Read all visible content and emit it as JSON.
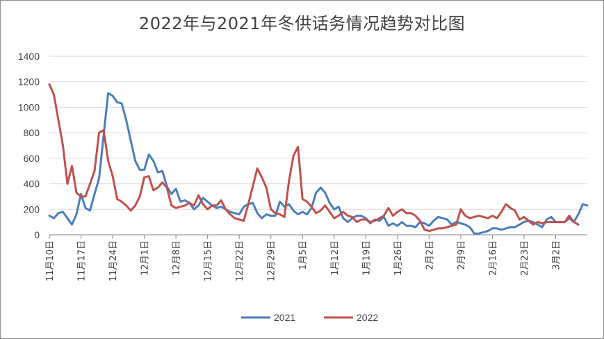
{
  "chart_data": {
    "type": "line",
    "title": "2022年与2021年冬供话务情况趋势对比图",
    "xlabel": "",
    "ylabel": "",
    "ylim": [
      0,
      1400
    ],
    "yticks": [
      0,
      200,
      400,
      600,
      800,
      1000,
      1200,
      1400
    ],
    "grid": "horizontal",
    "legend": "bottom",
    "x_tick_labels": [
      "11月10日",
      "11月17日",
      "11月24日",
      "12月1日",
      "12月8日",
      "12月15日",
      "12月22日",
      "12月29日",
      "1月5日",
      "1月12日",
      "1月19日",
      "1月26日",
      "2月2日",
      "2月9日",
      "2月16日",
      "2月23日",
      "3月2日"
    ],
    "x_tick_every": 7,
    "series": [
      {
        "name": "2021",
        "color": "#4a7ebb",
        "values": [
          150,
          130,
          170,
          180,
          130,
          80,
          160,
          320,
          210,
          190,
          320,
          440,
          780,
          1110,
          1090,
          1040,
          1030,
          900,
          740,
          580,
          510,
          510,
          630,
          580,
          490,
          500,
          380,
          320,
          360,
          260,
          270,
          250,
          200,
          230,
          290,
          260,
          230,
          210,
          220,
          200,
          180,
          170,
          160,
          220,
          240,
          250,
          170,
          130,
          160,
          150,
          150,
          260,
          220,
          240,
          190,
          160,
          180,
          160,
          210,
          330,
          370,
          330,
          250,
          200,
          220,
          130,
          100,
          130,
          150,
          150,
          130,
          90,
          120,
          110,
          140,
          70,
          90,
          70,
          100,
          70,
          70,
          60,
          100,
          90,
          70,
          110,
          140,
          130,
          120,
          80,
          100,
          90,
          80,
          60,
          10,
          10,
          20,
          30,
          50,
          50,
          40,
          50,
          60,
          60,
          80,
          100,
          110,
          100,
          80,
          60,
          120,
          140,
          100,
          100,
          100,
          130,
          100,
          160,
          240,
          230
        ]
      },
      {
        "name": "2022",
        "color": "#c0504d",
        "values": [
          1180,
          1100,
          900,
          700,
          400,
          540,
          330,
          300,
          300,
          400,
          500,
          800,
          820,
          580,
          460,
          280,
          260,
          230,
          190,
          230,
          300,
          450,
          460,
          350,
          370,
          410,
          370,
          230,
          210,
          220,
          230,
          250,
          230,
          310,
          240,
          200,
          230,
          230,
          270,
          200,
          160,
          130,
          120,
          110,
          240,
          380,
          520,
          450,
          370,
          200,
          170,
          160,
          140,
          420,
          620,
          690,
          280,
          260,
          220,
          170,
          190,
          230,
          180,
          130,
          150,
          180,
          150,
          140,
          100,
          120,
          120,
          100,
          110,
          130,
          150,
          210,
          150,
          180,
          200,
          170,
          170,
          150,
          110,
          40,
          30,
          40,
          50,
          50,
          60,
          70,
          80,
          200,
          150,
          130,
          140,
          150,
          140,
          130,
          150,
          130,
          180,
          240,
          210,
          190,
          120,
          140,
          110,
          80,
          100,
          90,
          100,
          100,
          100,
          100,
          100,
          150,
          100,
          80
        ]
      }
    ]
  }
}
